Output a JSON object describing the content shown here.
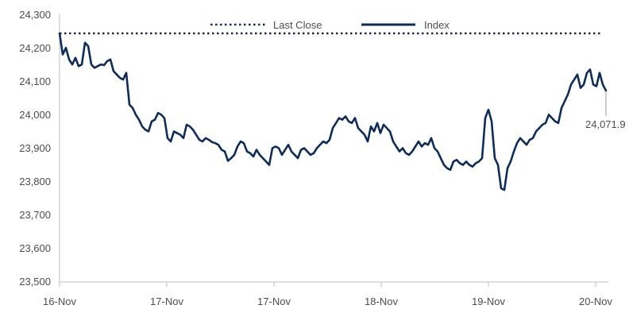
{
  "chart_data": {
    "type": "line",
    "title": "",
    "xlabel": "",
    "ylabel": "",
    "ylim": [
      23500,
      24300
    ],
    "y_ticks": [
      23500,
      23600,
      23700,
      23800,
      23900,
      24000,
      24100,
      24200,
      24300
    ],
    "y_tick_labels": [
      "23,500",
      "23,600",
      "23,700",
      "23,800",
      "23,900",
      "24,000",
      "24,100",
      "24,200",
      "24,300"
    ],
    "x_tick_labels": [
      "16-Nov",
      "17-Nov",
      "17-Nov",
      "18-Nov",
      "19-Nov",
      "20-Nov"
    ],
    "grid": false,
    "legend_position": "top-center",
    "series": [
      {
        "name": "Last Close",
        "style": "dotted",
        "color": "#1a2a4f",
        "values": [
          24243,
          24243
        ]
      },
      {
        "name": "Index",
        "style": "solid",
        "color": "#0d2c5e",
        "values": [
          24243,
          24180,
          24200,
          24165,
          24150,
          24170,
          24145,
          24150,
          24215,
          24205,
          24150,
          24140,
          24145,
          24150,
          24148,
          24160,
          24165,
          24130,
          24120,
          24110,
          24105,
          24125,
          24030,
          24020,
          24000,
          23985,
          23965,
          23955,
          23950,
          23980,
          23985,
          24005,
          24000,
          23990,
          23930,
          23920,
          23950,
          23945,
          23940,
          23930,
          23970,
          23965,
          23955,
          23940,
          23925,
          23920,
          23930,
          23925,
          23918,
          23915,
          23910,
          23895,
          23890,
          23862,
          23870,
          23880,
          23905,
          23920,
          23915,
          23890,
          23885,
          23875,
          23895,
          23880,
          23870,
          23860,
          23850,
          23900,
          23905,
          23900,
          23880,
          23895,
          23910,
          23890,
          23880,
          23870,
          23895,
          23900,
          23890,
          23880,
          23885,
          23900,
          23910,
          23920,
          23915,
          23925,
          23960,
          23975,
          23990,
          23985,
          23995,
          23980,
          23975,
          23990,
          23960,
          23950,
          23940,
          23920,
          23965,
          23950,
          23975,
          23945,
          23970,
          23960,
          23950,
          23920,
          23905,
          23890,
          23900,
          23885,
          23880,
          23890,
          23905,
          23920,
          23905,
          23915,
          23910,
          23930,
          23900,
          23890,
          23870,
          23850,
          23840,
          23835,
          23860,
          23865,
          23855,
          23850,
          23860,
          23850,
          23845,
          23855,
          23860,
          23870,
          23990,
          24015,
          23980,
          23870,
          23850,
          23780,
          23775,
          23840,
          23860,
          23890,
          23915,
          23930,
          23920,
          23910,
          23925,
          23930,
          23950,
          23960,
          23970,
          23975,
          24000,
          23990,
          23980,
          23975,
          24020,
          24040,
          24060,
          24090,
          24105,
          24120,
          24080,
          24090,
          24125,
          24135,
          24090,
          24085,
          24125,
          24090,
          24072
        ]
      }
    ],
    "end_value_label": "24,071.9"
  }
}
